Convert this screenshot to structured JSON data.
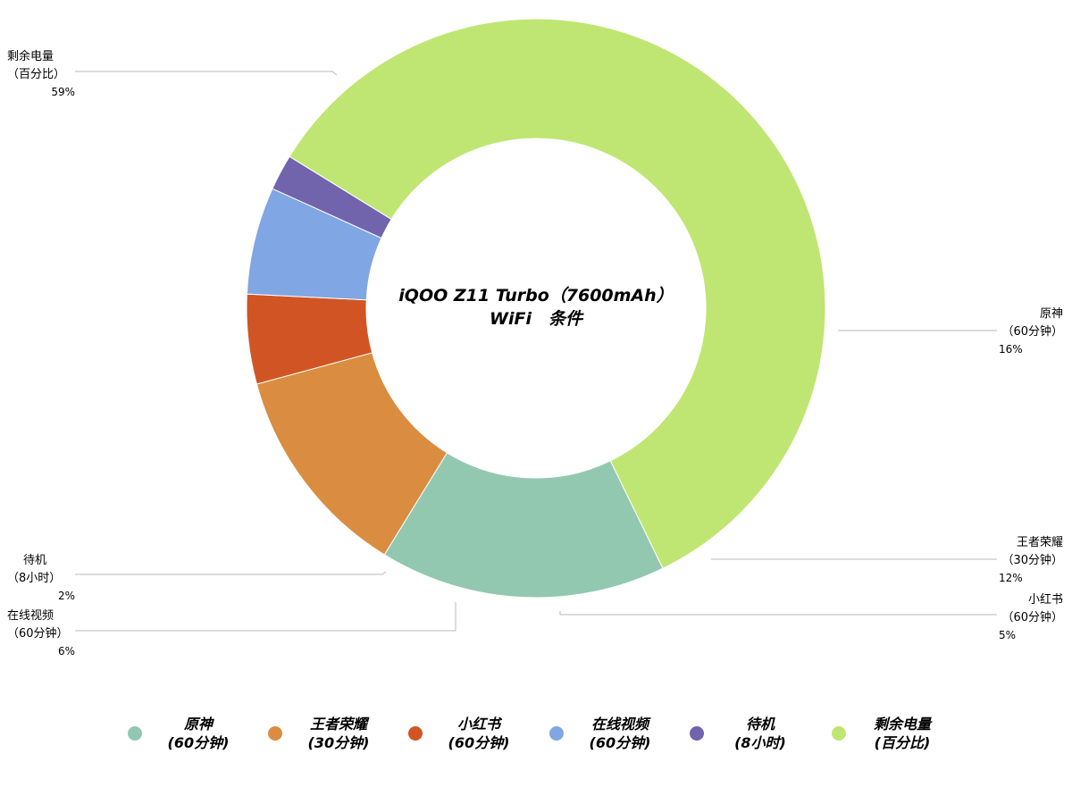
{
  "chart_data": {
    "type": "pie",
    "donut": true,
    "title_line1": "iQOO Z11 Turbo（7600mAh）",
    "title_line2": "WiFi　条件",
    "slices": [
      {
        "label_line1": "原神",
        "label_line2": "（60分钟）",
        "legend_line2": "(60分钟)",
        "value": 16,
        "percent_text": "16%",
        "color": "#93c8b0"
      },
      {
        "label_line1": "王者荣耀",
        "label_line2": "（30分钟）",
        "legend_line2": "(30分钟)",
        "value": 12,
        "percent_text": "12%",
        "color": "#da8d40"
      },
      {
        "label_line1": "小红书",
        "label_line2": "（60分钟）",
        "legend_line2": "(60分钟)",
        "value": 5,
        "percent_text": "5%",
        "color": "#d15524"
      },
      {
        "label_line1": "在线视频",
        "label_line2": "（60分钟）",
        "legend_line2": "(60分钟)",
        "value": 6,
        "percent_text": "6%",
        "color": "#80a6e3"
      },
      {
        "label_line1": "待机",
        "label_line2": "（8小时）",
        "legend_line2": "(8小时)",
        "value": 2,
        "percent_text": "2%",
        "color": "#7263ad"
      },
      {
        "label_line1": "剩余电量",
        "label_line2": "（百分比）",
        "legend_line2": "(百分比)",
        "value": 59,
        "percent_text": "59%",
        "color": "#bfe672"
      }
    ],
    "legend_position": "bottom"
  }
}
